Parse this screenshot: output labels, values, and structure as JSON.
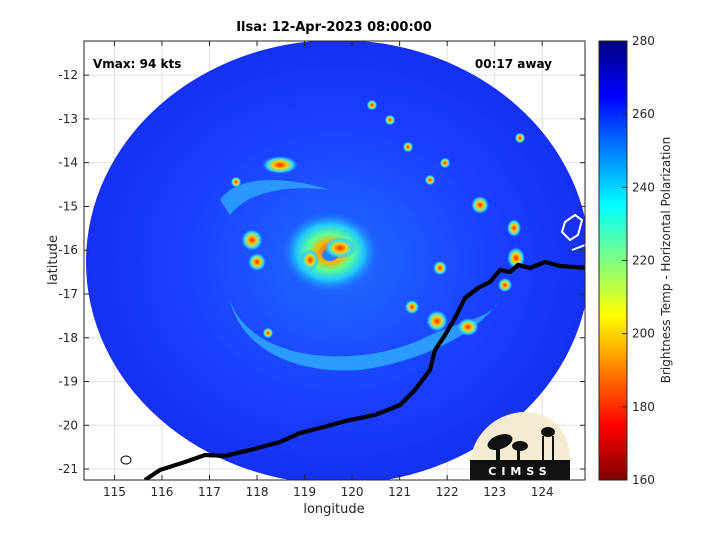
{
  "chart_data": {
    "type": "heatmap",
    "title": "Ilsa: 12-Apr-2023 08:00:00",
    "xlabel": "longitude",
    "ylabel": "latitude",
    "xlim": [
      114.36,
      124.9
    ],
    "ylim": [
      -21.25,
      -11.22
    ],
    "xticks": [
      115,
      116,
      117,
      118,
      119,
      120,
      121,
      122,
      123,
      124
    ],
    "yticks": [
      -12,
      -13,
      -14,
      -15,
      -16,
      -17,
      -18,
      -19,
      -20,
      -21
    ],
    "grid": true,
    "annotations": {
      "vmax": "Vmax: 94 kts",
      "time_offset": "00:17 away"
    },
    "storm_center": {
      "lon": 119.6,
      "lat": -16.1
    },
    "colorbar": {
      "label": "Brightness Temp - Horizontal Polarization",
      "range": [
        160,
        280
      ],
      "ticks": [
        160,
        180,
        200,
        220,
        240,
        260,
        280
      ],
      "colormap": "jet",
      "position": "right"
    },
    "colors": {
      "background_swath": "#1a3cff",
      "eyewall": "#d01010",
      "coastline": "#ffffff"
    }
  },
  "logo": {
    "text": "CIMSS"
  }
}
